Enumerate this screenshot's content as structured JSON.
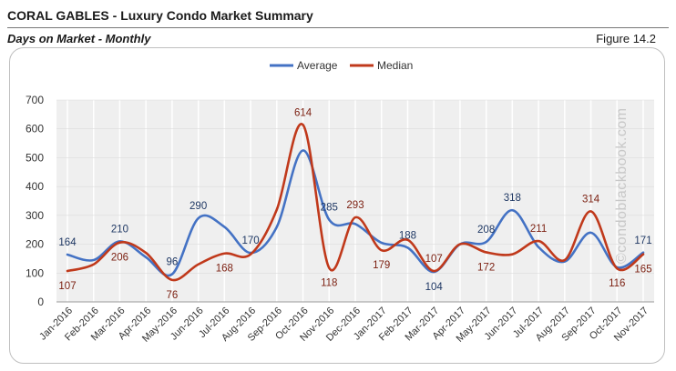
{
  "header": {
    "title": "CORAL GABLES - Luxury Condo Market Summary",
    "subtitle": "Days on Market - Monthly",
    "figure": "Figure 14.2"
  },
  "watermark": "©condoblackbook.com",
  "colors": {
    "average": "#4472C4",
    "median": "#C0391B",
    "plot_bg": "#EFEFEF",
    "grid": "#FFFFFF"
  },
  "chart_data": {
    "type": "line",
    "title": "CORAL GABLES - Luxury Condo Market Summary",
    "subtitle": "Days on Market - Monthly",
    "xlabel": "",
    "ylabel": "",
    "ylim": [
      0,
      700
    ],
    "yticks": [
      0,
      100,
      200,
      300,
      400,
      500,
      600,
      700
    ],
    "legend_position": "top-center",
    "categories": [
      "Jan-2016",
      "Feb-2016",
      "Mar-2016",
      "Apr-2016",
      "May-2016",
      "Jun-2016",
      "Jul-2016",
      "Aug-2016",
      "Sep-2016",
      "Oct-2016",
      "Nov-2016",
      "Dec-2016",
      "Jan-2017",
      "Feb-2017",
      "Mar-2017",
      "Apr-2017",
      "May-2017",
      "Jun-2017",
      "Jul-2017",
      "Aug-2017",
      "Sep-2017",
      "Oct-2017",
      "Nov-2017"
    ],
    "series": [
      {
        "name": "Average",
        "values": [
          164,
          145,
          210,
          155,
          96,
          290,
          260,
          170,
          260,
          525,
          285,
          270,
          205,
          188,
          104,
          200,
          208,
          318,
          190,
          140,
          240,
          120,
          171
        ]
      },
      {
        "name": "Median",
        "values": [
          107,
          130,
          206,
          170,
          76,
          130,
          168,
          165,
          320,
          614,
          118,
          293,
          179,
          215,
          107,
          200,
          172,
          165,
          211,
          145,
          314,
          116,
          165
        ]
      }
    ],
    "data_labels": {
      "Average": [
        {
          "index": 0,
          "label": "164"
        },
        {
          "index": 2,
          "label": "210"
        },
        {
          "index": 4,
          "label": "96"
        },
        {
          "index": 5,
          "label": "290"
        },
        {
          "index": 7,
          "label": "170"
        },
        {
          "index": 10,
          "label": "285"
        },
        {
          "index": 13,
          "label": "188"
        },
        {
          "index": 14,
          "label": "104"
        },
        {
          "index": 16,
          "label": "208"
        },
        {
          "index": 17,
          "label": "318"
        },
        {
          "index": 22,
          "label": "171"
        }
      ],
      "Median": [
        {
          "index": 0,
          "label": "107"
        },
        {
          "index": 2,
          "label": "206"
        },
        {
          "index": 4,
          "label": "76"
        },
        {
          "index": 6,
          "label": "168"
        },
        {
          "index": 9,
          "label": "614"
        },
        {
          "index": 10,
          "label": "118"
        },
        {
          "index": 11,
          "label": "293"
        },
        {
          "index": 12,
          "label": "179"
        },
        {
          "index": 14,
          "label": "107"
        },
        {
          "index": 16,
          "label": "172"
        },
        {
          "index": 18,
          "label": "211"
        },
        {
          "index": 20,
          "label": "314"
        },
        {
          "index": 21,
          "label": "116"
        },
        {
          "index": 22,
          "label": "165"
        }
      ]
    }
  }
}
